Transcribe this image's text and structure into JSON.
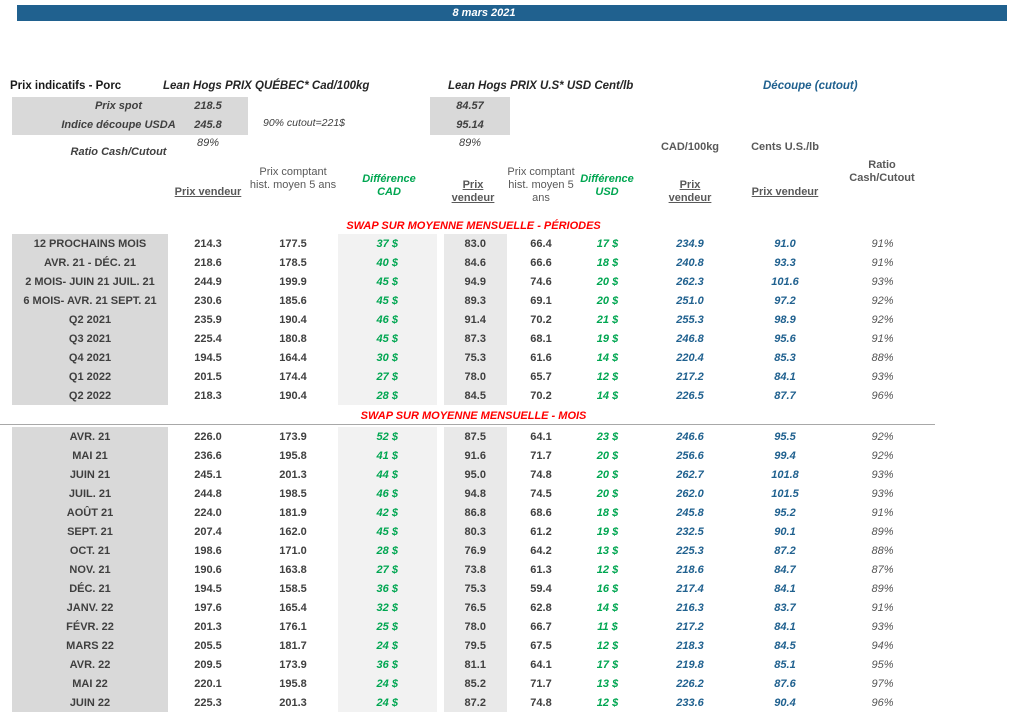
{
  "colors": {
    "accent_blue": "#20618F",
    "green": "#00A651",
    "red": "#FF0000",
    "label_bg": "#D9D9D9",
    "diff_col_bg": "#F2F2F2",
    "usv_col_bg": "#E9E9E9"
  },
  "title_bar": {
    "date": "8 mars 2021"
  },
  "header": {
    "left_title": "Prix indicatifs - Porc",
    "qc_title": "Lean Hogs PRIX QUÉBEC* Cad/100kg",
    "us_title": "Lean Hogs PRIX U.S* USD Cent/lb",
    "cutout_title": "Découpe (cutout)",
    "spot_label": "Prix spot",
    "spot_qc": "218.5",
    "spot_us": "84.57",
    "usda_label": "Indice découpe USDA",
    "usda_qc": "245.8",
    "usda_us": "95.14",
    "cutout_note": "90% cutout=221$",
    "ratio_label": "Ratio Cash/Cutout",
    "ratio_qc": "89%",
    "ratio_us": "89%"
  },
  "columns": {
    "cad_unit": "CAD/100kg",
    "us_unit": "Cents U.S./lb",
    "qc_vendeur": "Prix vendeur",
    "qc_hist": "Prix comptant hist. moyen 5 ans",
    "diff_cad": "Différence CAD",
    "us_vendeur": "Prix vendeur",
    "us_hist": "Prix comptant hist. moyen 5 ans",
    "diff_usd": "Différence USD",
    "cutout_cad_vendeur": "Prix vendeur",
    "cutout_us_vendeur": "Prix vendeur",
    "ratio": "Ratio Cash/Cutout"
  },
  "table": {
    "column_order": [
      "label",
      "qc_v",
      "qc_h",
      "diff_cad",
      "us_v",
      "us_h",
      "diff_usd",
      "cut_cad",
      "cut_us",
      "ratio"
    ],
    "sections": [
      {
        "title": "SWAP SUR MOYENNE MENSUELLE - PÉRIODES",
        "rows": [
          [
            "12 PROCHAINS MOIS",
            "214.3",
            "177.5",
            "37 $",
            "83.0",
            "66.4",
            "17 $",
            "234.9",
            "91.0",
            "91%"
          ],
          [
            "AVR. 21 -  DÉC. 21",
            "218.6",
            "178.5",
            "40 $",
            "84.6",
            "66.6",
            "18 $",
            "240.8",
            "93.3",
            "91%"
          ],
          [
            "2 MOIS- JUIN 21 JUIL. 21",
            "244.9",
            "199.9",
            "45 $",
            "94.9",
            "74.6",
            "20 $",
            "262.3",
            "101.6",
            "93%"
          ],
          [
            "6 MOIS- AVR. 21 SEPT. 21",
            "230.6",
            "185.6",
            "45 $",
            "89.3",
            "69.1",
            "20 $",
            "251.0",
            "97.2",
            "92%"
          ],
          [
            "Q2 2021",
            "235.9",
            "190.4",
            "46 $",
            "91.4",
            "70.2",
            "21 $",
            "255.3",
            "98.9",
            "92%"
          ],
          [
            "Q3 2021",
            "225.4",
            "180.8",
            "45 $",
            "87.3",
            "68.1",
            "19 $",
            "246.8",
            "95.6",
            "91%"
          ],
          [
            "Q4 2021",
            "194.5",
            "164.4",
            "30 $",
            "75.3",
            "61.6",
            "14 $",
            "220.4",
            "85.3",
            "88%"
          ],
          [
            "Q1 2022",
            "201.5",
            "174.4",
            "27 $",
            "78.0",
            "65.7",
            "12 $",
            "217.2",
            "84.1",
            "93%"
          ],
          [
            "Q2 2022",
            "218.3",
            "190.4",
            "28 $",
            "84.5",
            "70.2",
            "14 $",
            "226.5",
            "87.7",
            "96%"
          ]
        ]
      },
      {
        "title": "SWAP SUR MOYENNE MENSUELLE - MOIS",
        "rows": [
          [
            "AVR. 21",
            "226.0",
            "173.9",
            "52 $",
            "87.5",
            "64.1",
            "23 $",
            "246.6",
            "95.5",
            "92%"
          ],
          [
            "MAI 21",
            "236.6",
            "195.8",
            "41 $",
            "91.6",
            "71.7",
            "20 $",
            "256.6",
            "99.4",
            "92%"
          ],
          [
            "JUIN 21",
            "245.1",
            "201.3",
            "44 $",
            "95.0",
            "74.8",
            "20 $",
            "262.7",
            "101.8",
            "93%"
          ],
          [
            "JUIL. 21",
            "244.8",
            "198.5",
            "46 $",
            "94.8",
            "74.5",
            "20 $",
            "262.0",
            "101.5",
            "93%"
          ],
          [
            "AOÛT 21",
            "224.0",
            "181.9",
            "42 $",
            "86.8",
            "68.6",
            "18 $",
            "245.8",
            "95.2",
            "91%"
          ],
          [
            "SEPT. 21",
            "207.4",
            "162.0",
            "45 $",
            "80.3",
            "61.2",
            "19 $",
            "232.5",
            "90.1",
            "89%"
          ],
          [
            "OCT. 21",
            "198.6",
            "171.0",
            "28 $",
            "76.9",
            "64.2",
            "13 $",
            "225.3",
            "87.2",
            "88%"
          ],
          [
            "NOV. 21",
            "190.6",
            "163.8",
            "27 $",
            "73.8",
            "61.3",
            "12 $",
            "218.6",
            "84.7",
            "87%"
          ],
          [
            "DÉC. 21",
            "194.5",
            "158.5",
            "36 $",
            "75.3",
            "59.4",
            "16 $",
            "217.4",
            "84.1",
            "89%"
          ],
          [
            "JANV. 22",
            "197.6",
            "165.4",
            "32 $",
            "76.5",
            "62.8",
            "14 $",
            "216.3",
            "83.7",
            "91%"
          ],
          [
            "FÉVR. 22",
            "201.3",
            "176.1",
            "25 $",
            "78.0",
            "66.7",
            "11 $",
            "217.2",
            "84.1",
            "93%"
          ],
          [
            "MARS 22",
            "205.5",
            "181.7",
            "24 $",
            "79.5",
            "67.5",
            "12 $",
            "218.3",
            "84.5",
            "94%"
          ],
          [
            "AVR. 22",
            "209.5",
            "173.9",
            "36 $",
            "81.1",
            "64.1",
            "17 $",
            "219.8",
            "85.1",
            "95%"
          ],
          [
            "MAI 22",
            "220.1",
            "195.8",
            "24 $",
            "85.2",
            "71.7",
            "13 $",
            "226.2",
            "87.6",
            "97%"
          ],
          [
            "JUIN 22",
            "225.3",
            "201.3",
            "24 $",
            "87.2",
            "74.8",
            "12 $",
            "233.6",
            "90.4",
            "96%"
          ]
        ]
      }
    ]
  }
}
